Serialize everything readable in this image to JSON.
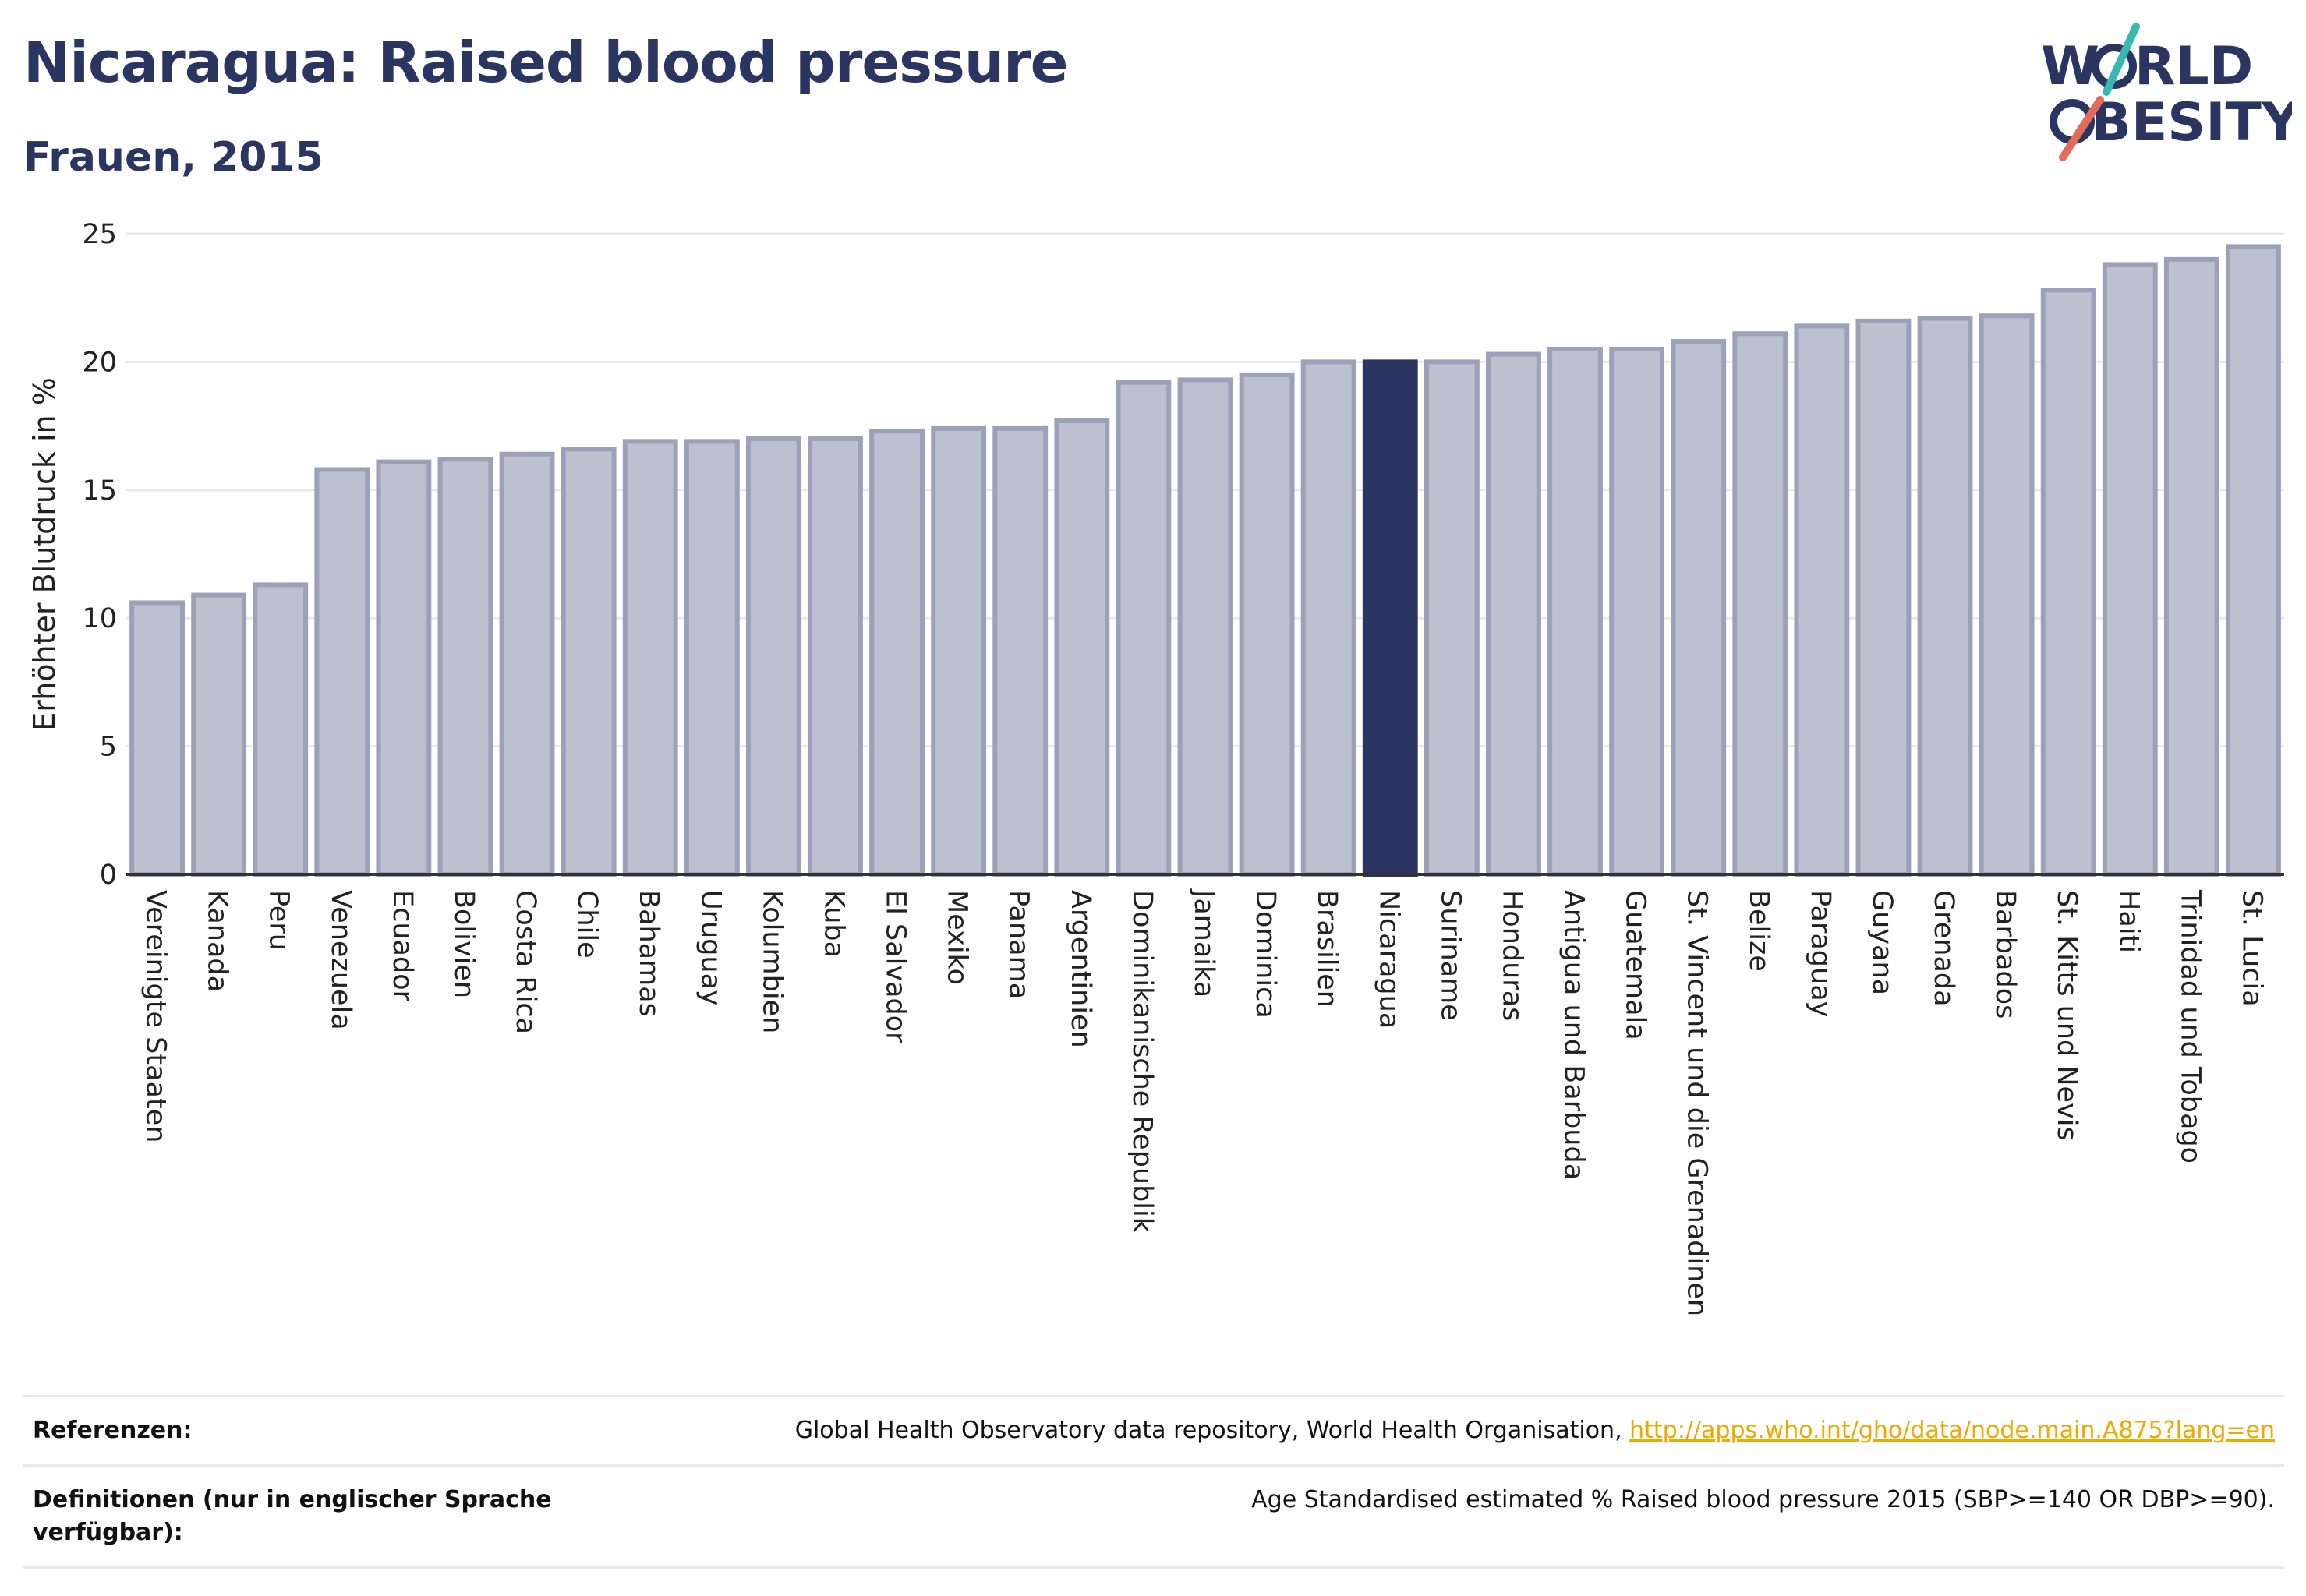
{
  "header": {
    "title": "Nicaragua: Raised blood pressure",
    "subtitle": "Frauen, 2015"
  },
  "logo": {
    "line1": "W",
    "line1b": "RLD",
    "line2": "BESITY",
    "icon": "world-obesity-logo"
  },
  "colors": {
    "bar": "#bcc0cf",
    "bar_border": "#9aa1b8",
    "highlight": "#2b3561",
    "grid": "#e8e8ee",
    "axis": "#333333"
  },
  "chart_data": {
    "type": "bar",
    "ylabel": "Erhöhter Blutdruck in %",
    "ylim": [
      0,
      25
    ],
    "yticks": [
      0,
      5,
      10,
      15,
      20,
      25
    ],
    "highlight": "Nicaragua",
    "categories": [
      "Vereinigte Staaten",
      "Kanada",
      "Peru",
      "Venezuela",
      "Ecuador",
      "Bolivien",
      "Costa Rica",
      "Chile",
      "Bahamas",
      "Uruguay",
      "Kolumbien",
      "Kuba",
      "El Salvador",
      "Mexiko",
      "Panama",
      "Argentinien",
      "Dominikanische Republik",
      "Jamaika",
      "Dominica",
      "Brasilien",
      "Nicaragua",
      "Suriname",
      "Honduras",
      "Antigua und Barbuda",
      "Guatemala",
      "St. Vincent und die Grenadinen",
      "Belize",
      "Paraguay",
      "Guyana",
      "Grenada",
      "Barbados",
      "St. Kitts und Nevis",
      "Haiti",
      "Trinidad und Tobago",
      "St. Lucia"
    ],
    "values": [
      10.6,
      10.9,
      11.3,
      15.8,
      16.1,
      16.2,
      16.4,
      16.6,
      16.9,
      16.9,
      17.0,
      17.0,
      17.3,
      17.4,
      17.4,
      17.7,
      19.2,
      19.3,
      19.5,
      20.0,
      20.0,
      20.0,
      20.3,
      20.5,
      20.5,
      20.8,
      21.1,
      21.4,
      21.6,
      21.7,
      21.8,
      22.8,
      23.8,
      24.0,
      24.5
    ]
  },
  "footer": {
    "references_label": "Referenzen:",
    "references_text": "Global Health Observatory data repository, World Health Organisation, ",
    "references_link": "http://apps.who.int/gho/data/node.main.A875?lang=en",
    "definitions_label": "Definitionen (nur in englischer Sprache verfügbar):",
    "definitions_text": "Age Standardised estimated % Raised blood pressure 2015 (SBP>=140 OR DBP>=90)."
  }
}
